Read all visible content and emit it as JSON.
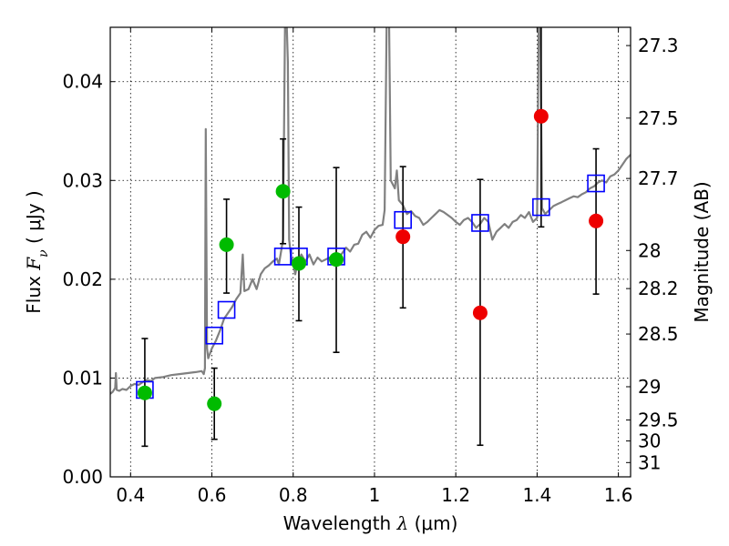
{
  "chart_data": {
    "type": "scatter",
    "title": "",
    "xlabel_prefix": "Wavelength  ",
    "xlabel_symbol": "λ",
    "xlabel_unit": " (μm)",
    "ylabel_left_prefix": "Flux  ",
    "ylabel_left_symbol": "F",
    "ylabel_left_sub": "ν",
    "ylabel_left_unit": "  ( μJy )",
    "ylabel_right": "Magnitude (AB)",
    "xlim": [
      0.35,
      1.63
    ],
    "ylim": [
      0.0,
      0.0455
    ],
    "grid": true,
    "x_ticks": [
      {
        "value": 0.4,
        "label": "0.4"
      },
      {
        "value": 0.6,
        "label": "0.6"
      },
      {
        "value": 0.8,
        "label": "0.8"
      },
      {
        "value": 1.0,
        "label": "1"
      },
      {
        "value": 1.2,
        "label": "1.2"
      },
      {
        "value": 1.4,
        "label": "1.4"
      },
      {
        "value": 1.6,
        "label": "1.6"
      }
    ],
    "y_ticks": [
      {
        "value": 0.0,
        "label": "0.00"
      },
      {
        "value": 0.01,
        "label": "0.01"
      },
      {
        "value": 0.02,
        "label": "0.02"
      },
      {
        "value": 0.03,
        "label": "0.03"
      },
      {
        "value": 0.04,
        "label": "0.04"
      }
    ],
    "right_ticks": [
      {
        "mag": 27.3,
        "label": "27.3"
      },
      {
        "mag": 27.5,
        "label": "27.5"
      },
      {
        "mag": 27.7,
        "label": "27.7"
      },
      {
        "mag": 28.0,
        "label": "28"
      },
      {
        "mag": 28.2,
        "label": "28.2"
      },
      {
        "mag": 28.5,
        "label": "28.5"
      },
      {
        "mag": 29.0,
        "label": "29"
      },
      {
        "mag": 29.5,
        "label": "29.5"
      },
      {
        "mag": 30.0,
        "label": "30"
      },
      {
        "mag": 31.0,
        "label": "31"
      }
    ],
    "colors": {
      "model_line": "#808080",
      "model_boxes": "#0000ff",
      "green_points": "#00bb00",
      "red_points": "#ee0000",
      "errorbars": "#000000"
    },
    "model_spectrum": [
      [
        0.35,
        0.0084
      ],
      [
        0.356,
        0.0086
      ],
      [
        0.362,
        0.009
      ],
      [
        0.364,
        0.0105
      ],
      [
        0.366,
        0.0088
      ],
      [
        0.372,
        0.0087
      ],
      [
        0.38,
        0.0089
      ],
      [
        0.39,
        0.0088
      ],
      [
        0.4,
        0.0092
      ],
      [
        0.41,
        0.0094
      ],
      [
        0.42,
        0.0093
      ],
      [
        0.43,
        0.0096
      ],
      [
        0.44,
        0.0098
      ],
      [
        0.45,
        0.0097
      ],
      [
        0.46,
        0.01
      ],
      [
        0.48,
        0.0101
      ],
      [
        0.5,
        0.0103
      ],
      [
        0.52,
        0.0104
      ],
      [
        0.54,
        0.0105
      ],
      [
        0.56,
        0.0106
      ],
      [
        0.575,
        0.0107
      ],
      [
        0.58,
        0.0104
      ],
      [
        0.583,
        0.011
      ],
      [
        0.585,
        0.0352
      ],
      [
        0.588,
        0.013
      ],
      [
        0.591,
        0.012
      ],
      [
        0.6,
        0.013
      ],
      [
        0.61,
        0.0138
      ],
      [
        0.62,
        0.0148
      ],
      [
        0.63,
        0.016
      ],
      [
        0.64,
        0.0166
      ],
      [
        0.65,
        0.0172
      ],
      [
        0.66,
        0.018
      ],
      [
        0.67,
        0.0186
      ],
      [
        0.676,
        0.0225
      ],
      [
        0.68,
        0.0188
      ],
      [
        0.69,
        0.019
      ],
      [
        0.7,
        0.02
      ],
      [
        0.71,
        0.019
      ],
      [
        0.72,
        0.0205
      ],
      [
        0.73,
        0.0211
      ],
      [
        0.74,
        0.0214
      ],
      [
        0.75,
        0.0218
      ],
      [
        0.76,
        0.0221
      ],
      [
        0.765,
        0.0215
      ],
      [
        0.775,
        0.024
      ],
      [
        0.78,
        0.046
      ],
      [
        0.784,
        0.046
      ],
      [
        0.787,
        0.042
      ],
      [
        0.79,
        0.024
      ],
      [
        0.795,
        0.0222
      ],
      [
        0.8,
        0.0218
      ],
      [
        0.805,
        0.0205
      ],
      [
        0.81,
        0.0215
      ],
      [
        0.82,
        0.0225
      ],
      [
        0.83,
        0.0218
      ],
      [
        0.84,
        0.0225
      ],
      [
        0.85,
        0.0215
      ],
      [
        0.86,
        0.0222
      ],
      [
        0.87,
        0.0218
      ],
      [
        0.88,
        0.022
      ],
      [
        0.89,
        0.0222
      ],
      [
        0.9,
        0.022
      ],
      [
        0.91,
        0.0223
      ],
      [
        0.92,
        0.0226
      ],
      [
        0.93,
        0.0232
      ],
      [
        0.94,
        0.0228
      ],
      [
        0.95,
        0.0235
      ],
      [
        0.96,
        0.0236
      ],
      [
        0.97,
        0.0245
      ],
      [
        0.98,
        0.0248
      ],
      [
        0.99,
        0.0242
      ],
      [
        1.0,
        0.025
      ],
      [
        1.01,
        0.0254
      ],
      [
        1.02,
        0.0255
      ],
      [
        1.025,
        0.027
      ],
      [
        1.03,
        0.046
      ],
      [
        1.036,
        0.046
      ],
      [
        1.04,
        0.03
      ],
      [
        1.05,
        0.0292
      ],
      [
        1.055,
        0.031
      ],
      [
        1.06,
        0.028
      ],
      [
        1.07,
        0.0275
      ],
      [
        1.08,
        0.0266
      ],
      [
        1.09,
        0.0269
      ],
      [
        1.1,
        0.0264
      ],
      [
        1.11,
        0.0262
      ],
      [
        1.12,
        0.0255
      ],
      [
        1.13,
        0.0258
      ],
      [
        1.14,
        0.0262
      ],
      [
        1.15,
        0.0266
      ],
      [
        1.16,
        0.027
      ],
      [
        1.17,
        0.0268
      ],
      [
        1.18,
        0.0265
      ],
      [
        1.19,
        0.0262
      ],
      [
        1.2,
        0.0258
      ],
      [
        1.21,
        0.0255
      ],
      [
        1.22,
        0.026
      ],
      [
        1.23,
        0.0262
      ],
      [
        1.24,
        0.0258
      ],
      [
        1.25,
        0.0252
      ],
      [
        1.26,
        0.0256
      ],
      [
        1.27,
        0.0262
      ],
      [
        1.28,
        0.0258
      ],
      [
        1.29,
        0.024
      ],
      [
        1.3,
        0.0248
      ],
      [
        1.31,
        0.0252
      ],
      [
        1.32,
        0.0256
      ],
      [
        1.33,
        0.0252
      ],
      [
        1.34,
        0.0258
      ],
      [
        1.35,
        0.026
      ],
      [
        1.36,
        0.0265
      ],
      [
        1.37,
        0.0262
      ],
      [
        1.38,
        0.0268
      ],
      [
        1.39,
        0.0258
      ],
      [
        1.4,
        0.0262
      ],
      [
        1.404,
        0.046
      ],
      [
        1.408,
        0.046
      ],
      [
        1.412,
        0.0272
      ],
      [
        1.42,
        0.0266
      ],
      [
        1.43,
        0.027
      ],
      [
        1.44,
        0.0274
      ],
      [
        1.45,
        0.0276
      ],
      [
        1.46,
        0.0278
      ],
      [
        1.47,
        0.028
      ],
      [
        1.48,
        0.0282
      ],
      [
        1.49,
        0.0284
      ],
      [
        1.5,
        0.0283
      ],
      [
        1.51,
        0.0286
      ],
      [
        1.52,
        0.0288
      ],
      [
        1.53,
        0.0292
      ],
      [
        1.54,
        0.0294
      ],
      [
        1.55,
        0.0298
      ],
      [
        1.56,
        0.03
      ],
      [
        1.57,
        0.0298
      ],
      [
        1.58,
        0.0304
      ],
      [
        1.59,
        0.0306
      ],
      [
        1.6,
        0.031
      ],
      [
        1.61,
        0.0316
      ],
      [
        1.62,
        0.0322
      ],
      [
        1.63,
        0.0326
      ]
    ],
    "model_boxes": [
      {
        "x": 0.435,
        "y": 0.0088
      },
      {
        "x": 0.606,
        "y": 0.0143
      },
      {
        "x": 0.636,
        "y": 0.0169
      },
      {
        "x": 0.775,
        "y": 0.0223
      },
      {
        "x": 0.814,
        "y": 0.0223
      },
      {
        "x": 0.906,
        "y": 0.0223
      },
      {
        "x": 1.07,
        "y": 0.026
      },
      {
        "x": 1.26,
        "y": 0.0257
      },
      {
        "x": 1.41,
        "y": 0.0273
      },
      {
        "x": 1.545,
        "y": 0.0297
      }
    ],
    "observed": [
      {
        "x": 0.435,
        "y": 0.0085,
        "low": 0.0031,
        "high": 0.014,
        "color": "green"
      },
      {
        "x": 0.606,
        "y": 0.0074,
        "low": 0.0038,
        "high": 0.011,
        "color": "green"
      },
      {
        "x": 0.636,
        "y": 0.0235,
        "low": 0.0186,
        "high": 0.0281,
        "color": "green"
      },
      {
        "x": 0.775,
        "y": 0.0289,
        "low": 0.0236,
        "high": 0.0342,
        "color": "green"
      },
      {
        "x": 0.814,
        "y": 0.0216,
        "low": 0.0158,
        "high": 0.0273,
        "color": "green"
      },
      {
        "x": 0.906,
        "y": 0.022,
        "low": 0.0126,
        "high": 0.0313,
        "color": "green"
      },
      {
        "x": 1.07,
        "y": 0.0243,
        "low": 0.0171,
        "high": 0.0314,
        "color": "red"
      },
      {
        "x": 1.26,
        "y": 0.0166,
        "low": 0.0032,
        "high": 0.0301,
        "color": "red"
      },
      {
        "x": 1.41,
        "y": 0.0365,
        "low": 0.0253,
        "high": 0.046,
        "color": "red"
      },
      {
        "x": 1.545,
        "y": 0.0259,
        "low": 0.0185,
        "high": 0.0332,
        "color": "red"
      }
    ]
  }
}
